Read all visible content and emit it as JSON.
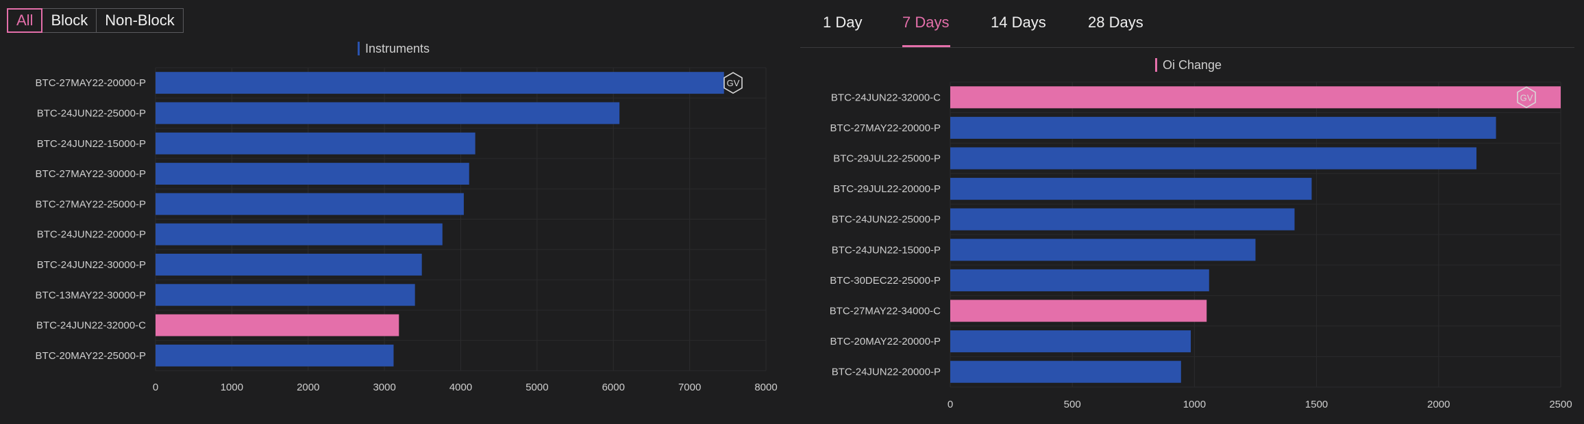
{
  "filters": {
    "all_label": "All",
    "block_label": "Block",
    "non_block_label": "Non-Block"
  },
  "period_tabs": [
    {
      "label": "1 Day"
    },
    {
      "label": "7 Days"
    },
    {
      "label": "14 Days"
    },
    {
      "label": "28 Days"
    }
  ],
  "active_period": "7 Days",
  "colors": {
    "put": "#2a52ad",
    "call": "#e46faa",
    "accent": "#e46faa"
  },
  "chart_data": [
    {
      "type": "bar",
      "orientation": "horizontal",
      "legend": "Instruments",
      "legend_color": "#2a52ad",
      "categories": [
        "BTC-27MAY22-20000-P",
        "BTC-24JUN22-25000-P",
        "BTC-24JUN22-15000-P",
        "BTC-27MAY22-30000-P",
        "BTC-27MAY22-25000-P",
        "BTC-24JUN22-20000-P",
        "BTC-24JUN22-30000-P",
        "BTC-13MAY22-30000-P",
        "BTC-24JUN22-32000-C",
        "BTC-20MAY22-25000-P"
      ],
      "values": [
        7450,
        6080,
        4190,
        4110,
        4040,
        3760,
        3490,
        3400,
        3190,
        3120
      ],
      "xlim": [
        0,
        8000
      ],
      "xticks": [
        0,
        1000,
        2000,
        3000,
        4000,
        5000,
        6000,
        7000,
        8000
      ],
      "grid": true
    },
    {
      "type": "bar",
      "orientation": "horizontal",
      "legend": "Oi Change",
      "legend_color": "#e46faa",
      "categories": [
        "BTC-24JUN22-32000-C",
        "BTC-27MAY22-20000-P",
        "BTC-29JUL22-25000-P",
        "BTC-29JUL22-20000-P",
        "BTC-24JUN22-25000-P",
        "BTC-24JUN22-15000-P",
        "BTC-30DEC22-25000-P",
        "BTC-27MAY22-34000-C",
        "BTC-20MAY22-20000-P",
        "BTC-24JUN22-20000-P"
      ],
      "values": [
        2500,
        2235,
        2155,
        1480,
        1410,
        1250,
        1060,
        1050,
        985,
        945
      ],
      "xlim": [
        0,
        2500
      ],
      "xticks": [
        0,
        500,
        1000,
        1500,
        2000,
        2500
      ],
      "grid": true
    }
  ]
}
